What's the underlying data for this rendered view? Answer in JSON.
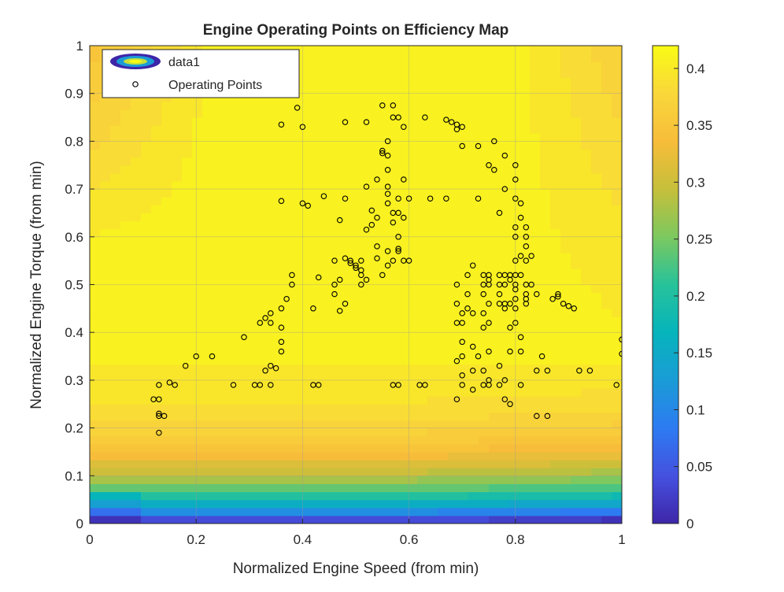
{
  "chart_data": {
    "type": "scatter",
    "title": "Engine Operating Points on Efficiency Map",
    "xlabel": "Normalized Engine Speed (from min)",
    "ylabel": "Normalized Engine Torque (from min)",
    "xlim": [
      0,
      1
    ],
    "ylim": [
      0,
      1
    ],
    "xticks": [
      "0",
      "0.2",
      "0.4",
      "0.6",
      "0.8",
      "1"
    ],
    "yticks": [
      "0",
      "0.1",
      "0.2",
      "0.3",
      "0.4",
      "0.5",
      "0.6",
      "0.7",
      "0.8",
      "0.9",
      "1"
    ],
    "grid": true,
    "legend_position": "top-left",
    "legend": [
      {
        "label": "data1",
        "kind": "filled-contour"
      },
      {
        "label": "Operating Points",
        "kind": "marker-circle"
      }
    ],
    "colorbar": {
      "colormap": "parula",
      "range": [
        0,
        0.42
      ],
      "ticks": [
        "0",
        "0.05",
        "0.1",
        "0.15",
        "0.2",
        "0.25",
        "0.3",
        "0.35",
        "0.4"
      ],
      "tick_values": [
        0,
        0.05,
        0.1,
        0.15,
        0.2,
        0.25,
        0.3,
        0.35,
        0.4
      ]
    },
    "efficiency_map": {
      "name": "data1",
      "description_levels": "efficiency rises from ~0.02 at zero torque to ~0.41 in the central plateau (speed 0.3-0.75, torque 0.45-0.9), falling to ~0.3 at high speed/high torque and ~0.28 at low speed/high torque"
    },
    "series": [
      {
        "name": "Operating Points",
        "marker": "circle",
        "points": [
          [
            0.12,
            0.26
          ],
          [
            0.13,
            0.29
          ],
          [
            0.13,
            0.26
          ],
          [
            0.13,
            0.23
          ],
          [
            0.13,
            0.225
          ],
          [
            0.14,
            0.225
          ],
          [
            0.13,
            0.19
          ],
          [
            0.15,
            0.295
          ],
          [
            0.16,
            0.29
          ],
          [
            0.18,
            0.33
          ],
          [
            0.2,
            0.35
          ],
          [
            0.23,
            0.35
          ],
          [
            0.27,
            0.29
          ],
          [
            0.29,
            0.39
          ],
          [
            0.31,
            0.29
          ],
          [
            0.32,
            0.29
          ],
          [
            0.33,
            0.32
          ],
          [
            0.34,
            0.33
          ],
          [
            0.34,
            0.29
          ],
          [
            0.35,
            0.325
          ],
          [
            0.32,
            0.42
          ],
          [
            0.33,
            0.43
          ],
          [
            0.34,
            0.44
          ],
          [
            0.34,
            0.42
          ],
          [
            0.36,
            0.38
          ],
          [
            0.36,
            0.36
          ],
          [
            0.36,
            0.45
          ],
          [
            0.36,
            0.41
          ],
          [
            0.37,
            0.47
          ],
          [
            0.38,
            0.5
          ],
          [
            0.38,
            0.52
          ],
          [
            0.36,
            0.675
          ],
          [
            0.36,
            0.835
          ],
          [
            0.39,
            0.87
          ],
          [
            0.4,
            0.83
          ],
          [
            0.4,
            0.67
          ],
          [
            0.41,
            0.665
          ],
          [
            0.42,
            0.45
          ],
          [
            0.42,
            0.29
          ],
          [
            0.43,
            0.29
          ],
          [
            0.43,
            0.515
          ],
          [
            0.44,
            0.685
          ],
          [
            0.46,
            0.55
          ],
          [
            0.46,
            0.48
          ],
          [
            0.46,
            0.5
          ],
          [
            0.47,
            0.445
          ],
          [
            0.47,
            0.635
          ],
          [
            0.47,
            0.51
          ],
          [
            0.48,
            0.84
          ],
          [
            0.48,
            0.555
          ],
          [
            0.48,
            0.46
          ],
          [
            0.48,
            0.68
          ],
          [
            0.49,
            0.55
          ],
          [
            0.49,
            0.545
          ],
          [
            0.5,
            0.54
          ],
          [
            0.5,
            0.535
          ],
          [
            0.51,
            0.53
          ],
          [
            0.51,
            0.55
          ],
          [
            0.51,
            0.5
          ],
          [
            0.51,
            0.52
          ],
          [
            0.52,
            0.84
          ],
          [
            0.52,
            0.615
          ],
          [
            0.52,
            0.51
          ],
          [
            0.52,
            0.705
          ],
          [
            0.53,
            0.625
          ],
          [
            0.53,
            0.655
          ],
          [
            0.54,
            0.64
          ],
          [
            0.54,
            0.555
          ],
          [
            0.54,
            0.58
          ],
          [
            0.54,
            0.72
          ],
          [
            0.55,
            0.52
          ],
          [
            0.55,
            0.875
          ],
          [
            0.55,
            0.775
          ],
          [
            0.55,
            0.78
          ],
          [
            0.56,
            0.8
          ],
          [
            0.56,
            0.77
          ],
          [
            0.56,
            0.74
          ],
          [
            0.56,
            0.705
          ],
          [
            0.56,
            0.69
          ],
          [
            0.56,
            0.67
          ],
          [
            0.56,
            0.57
          ],
          [
            0.56,
            0.54
          ],
          [
            0.57,
            0.65
          ],
          [
            0.57,
            0.63
          ],
          [
            0.57,
            0.55
          ],
          [
            0.57,
            0.29
          ],
          [
            0.57,
            0.875
          ],
          [
            0.57,
            0.85
          ],
          [
            0.58,
            0.85
          ],
          [
            0.58,
            0.68
          ],
          [
            0.58,
            0.65
          ],
          [
            0.58,
            0.6
          ],
          [
            0.58,
            0.575
          ],
          [
            0.58,
            0.57
          ],
          [
            0.58,
            0.29
          ],
          [
            0.59,
            0.83
          ],
          [
            0.59,
            0.72
          ],
          [
            0.59,
            0.64
          ],
          [
            0.59,
            0.55
          ],
          [
            0.6,
            0.68
          ],
          [
            0.6,
            0.55
          ],
          [
            0.62,
            0.29
          ],
          [
            0.63,
            0.29
          ],
          [
            0.63,
            0.85
          ],
          [
            0.64,
            0.68
          ],
          [
            0.67,
            0.68
          ],
          [
            0.67,
            0.845
          ],
          [
            0.68,
            0.84
          ],
          [
            0.69,
            0.835
          ],
          [
            0.69,
            0.825
          ],
          [
            0.7,
            0.83
          ],
          [
            0.7,
            0.79
          ],
          [
            0.69,
            0.26
          ],
          [
            0.7,
            0.35
          ],
          [
            0.7,
            0.29
          ],
          [
            0.69,
            0.34
          ],
          [
            0.69,
            0.42
          ],
          [
            0.69,
            0.46
          ],
          [
            0.69,
            0.5
          ],
          [
            0.7,
            0.38
          ],
          [
            0.7,
            0.42
          ],
          [
            0.7,
            0.44
          ],
          [
            0.7,
            0.31
          ],
          [
            0.71,
            0.45
          ],
          [
            0.71,
            0.48
          ],
          [
            0.71,
            0.52
          ],
          [
            0.72,
            0.54
          ],
          [
            0.72,
            0.44
          ],
          [
            0.72,
            0.37
          ],
          [
            0.72,
            0.32
          ],
          [
            0.72,
            0.28
          ],
          [
            0.73,
            0.79
          ],
          [
            0.73,
            0.68
          ],
          [
            0.73,
            0.35
          ],
          [
            0.74,
            0.52
          ],
          [
            0.74,
            0.5
          ],
          [
            0.74,
            0.48
          ],
          [
            0.74,
            0.44
          ],
          [
            0.74,
            0.41
          ],
          [
            0.74,
            0.32
          ],
          [
            0.74,
            0.29
          ],
          [
            0.75,
            0.52
          ],
          [
            0.75,
            0.51
          ],
          [
            0.75,
            0.5
          ],
          [
            0.75,
            0.46
          ],
          [
            0.75,
            0.42
          ],
          [
            0.75,
            0.36
          ],
          [
            0.75,
            0.3
          ],
          [
            0.75,
            0.29
          ],
          [
            0.75,
            0.75
          ],
          [
            0.76,
            0.8
          ],
          [
            0.76,
            0.74
          ],
          [
            0.77,
            0.65
          ],
          [
            0.77,
            0.52
          ],
          [
            0.77,
            0.5
          ],
          [
            0.77,
            0.48
          ],
          [
            0.77,
            0.46
          ],
          [
            0.77,
            0.33
          ],
          [
            0.77,
            0.29
          ],
          [
            0.78,
            0.77
          ],
          [
            0.78,
            0.7
          ],
          [
            0.78,
            0.52
          ],
          [
            0.78,
            0.5
          ],
          [
            0.78,
            0.46
          ],
          [
            0.78,
            0.45
          ],
          [
            0.78,
            0.3
          ],
          [
            0.78,
            0.26
          ],
          [
            0.79,
            0.52
          ],
          [
            0.79,
            0.51
          ],
          [
            0.79,
            0.46
          ],
          [
            0.79,
            0.41
          ],
          [
            0.79,
            0.36
          ],
          [
            0.79,
            0.25
          ],
          [
            0.8,
            0.75
          ],
          [
            0.8,
            0.72
          ],
          [
            0.8,
            0.68
          ],
          [
            0.8,
            0.62
          ],
          [
            0.8,
            0.6
          ],
          [
            0.8,
            0.55
          ],
          [
            0.8,
            0.52
          ],
          [
            0.8,
            0.5
          ],
          [
            0.8,
            0.49
          ],
          [
            0.8,
            0.47
          ],
          [
            0.8,
            0.45
          ],
          [
            0.8,
            0.42
          ],
          [
            0.81,
            0.39
          ],
          [
            0.81,
            0.36
          ],
          [
            0.81,
            0.29
          ],
          [
            0.81,
            0.67
          ],
          [
            0.81,
            0.64
          ],
          [
            0.81,
            0.56
          ],
          [
            0.81,
            0.52
          ],
          [
            0.82,
            0.62
          ],
          [
            0.82,
            0.58
          ],
          [
            0.82,
            0.55
          ],
          [
            0.82,
            0.5
          ],
          [
            0.82,
            0.48
          ],
          [
            0.82,
            0.47
          ],
          [
            0.82,
            0.46
          ],
          [
            0.82,
            0.6
          ],
          [
            0.83,
            0.56
          ],
          [
            0.83,
            0.5
          ],
          [
            0.84,
            0.48
          ],
          [
            0.84,
            0.32
          ],
          [
            0.84,
            0.225
          ],
          [
            0.85,
            0.35
          ],
          [
            0.86,
            0.225
          ],
          [
            0.86,
            0.32
          ],
          [
            0.87,
            0.47
          ],
          [
            0.88,
            0.48
          ],
          [
            0.88,
            0.475
          ],
          [
            0.89,
            0.46
          ],
          [
            0.9,
            0.455
          ],
          [
            0.91,
            0.45
          ],
          [
            0.92,
            0.32
          ],
          [
            0.94,
            0.32
          ],
          [
            0.99,
            0.29
          ],
          [
            1.0,
            0.385
          ],
          [
            1.0,
            0.355
          ]
        ]
      }
    ]
  }
}
